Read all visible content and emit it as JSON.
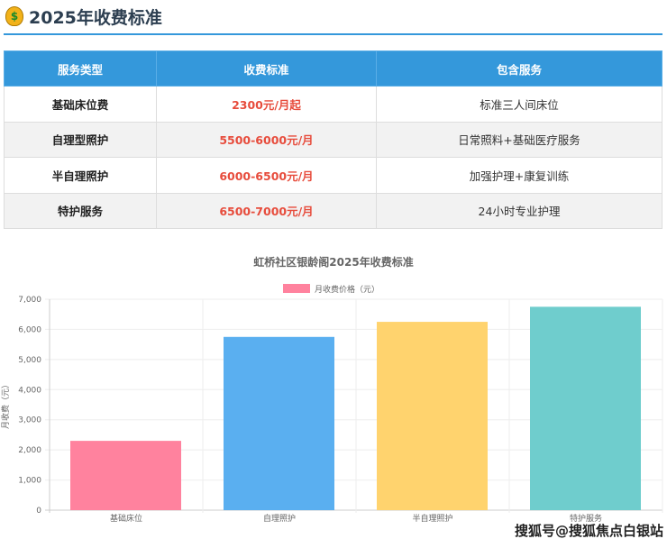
{
  "header": {
    "icon": "money-bag-icon",
    "title": "2025年收费标准"
  },
  "table": {
    "headers": [
      "服务类型",
      "收费标准",
      "包含服务"
    ],
    "rows": [
      [
        "基础床位费",
        "2300元/月起",
        "标准三人间床位"
      ],
      [
        "自理型照护",
        "5500-6000元/月",
        "日常照料+基础医疗服务"
      ],
      [
        "半自理照护",
        "6000-6500元/月",
        "加强护理+康复训练"
      ],
      [
        "特护服务",
        "6500-7000元/月",
        "24小时专业护理"
      ]
    ],
    "colors": {
      "header": "#3498db",
      "price": "#e74c3c"
    }
  },
  "chart_data": {
    "type": "bar",
    "title": "虹桥社区银龄阁2025年收费标准",
    "categories": [
      "基础床位",
      "自理照护",
      "半自理照护",
      "特护服务"
    ],
    "series": [
      {
        "name": "月收费价格（元）",
        "values": [
          2300,
          5750,
          6250,
          6750
        ]
      }
    ],
    "colors": [
      "#ff829e",
      "#5aaff0",
      "#ffd36e",
      "#6fcdcd"
    ],
    "ylabel": "月收费（元）",
    "ylim": [
      0,
      7000
    ],
    "yticks": [
      "0",
      "1,000",
      "2,000",
      "3,000",
      "4,000",
      "5,000",
      "6,000",
      "7,000"
    ],
    "legend": "top",
    "grid": true
  },
  "watermark": "搜狐号@搜狐焦点白银站"
}
